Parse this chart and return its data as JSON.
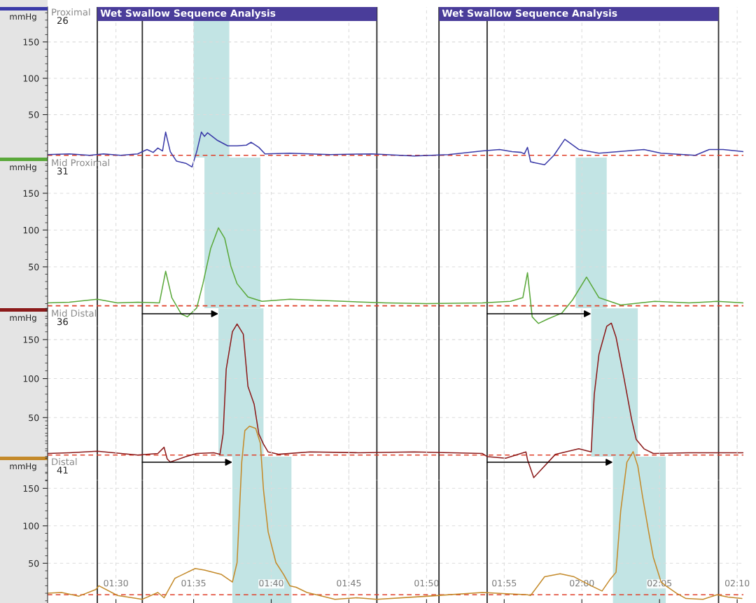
{
  "chart_data": [
    {
      "type": "line",
      "title": "Proximal",
      "subtitle": "26",
      "ylabel": "mmHg",
      "grid": true,
      "tick_labels": "y",
      "xlim": [
        85.6,
        130.4
      ],
      "ylim": [
        -25,
        198
      ],
      "yticks": [
        50,
        100,
        150
      ],
      "xticks": [
        {
          "value": 90,
          "label": null
        },
        {
          "value": 95,
          "label": null
        },
        {
          "value": 100,
          "label": null
        },
        {
          "value": 105,
          "label": null
        },
        {
          "value": 110,
          "label": null
        },
        {
          "value": 115,
          "label": null
        },
        {
          "value": 120,
          "label": null
        },
        {
          "value": 125,
          "label": null
        },
        {
          "value": 130,
          "label": null
        }
      ],
      "x": [
        85.6,
        87.0,
        88.3,
        89.2,
        90.3,
        91.4,
        92.0,
        92.4,
        92.7,
        93.0,
        93.2,
        93.5,
        93.9,
        94.5,
        94.9,
        95.2,
        95.5,
        95.7,
        95.9,
        96.5,
        97.2,
        97.8,
        98.4,
        98.7,
        99.2,
        99.6,
        101.2,
        103.8,
        106.5,
        109.2,
        111.4,
        113.6,
        114.7,
        115.5,
        116.1,
        116.3,
        116.5,
        116.7,
        117.6,
        118.2,
        118.9,
        119.8,
        121.1,
        124.0,
        125.1,
        127.3,
        128.2,
        129.1,
        130.4
      ],
      "series": [
        {
          "color": "#3a3aa8",
          "values": [
            -5,
            -4,
            -6,
            -4,
            -6,
            -4,
            2,
            -2,
            4,
            0,
            26,
            -1,
            -14,
            -17,
            -22,
            -1,
            26,
            20,
            25,
            15,
            7,
            7,
            8,
            12,
            5,
            -4,
            -3,
            -5,
            -4,
            -7,
            -5,
            0,
            2,
            -1,
            -2,
            -4,
            5,
            -15,
            -19,
            -6,
            16,
            2,
            -3,
            2,
            -3,
            -6,
            2,
            2,
            -1
          ]
        }
      ],
      "bands": [
        {
          "axis": "x",
          "from": 88.8,
          "to": 106.8,
          "label": "Wet Swallow Sequence Analysis",
          "color": "#4a3d9a"
        },
        {
          "axis": "x",
          "from": 110.8,
          "to": 128.8,
          "label": "Wet Swallow Sequence Analysis",
          "color": "#4a3d9a"
        },
        {
          "axis": "x",
          "from": 95.0,
          "to": 97.3,
          "color": "#c2e4e4"
        }
      ],
      "ref_lines": [
        {
          "axis": "x",
          "value": 88.8,
          "color": "#2b2b2b"
        },
        {
          "axis": "x",
          "value": 91.7,
          "color": "#2b2b2b"
        },
        {
          "axis": "x",
          "value": 106.8,
          "color": "#2b2b2b"
        },
        {
          "axis": "x",
          "value": 110.8,
          "color": "#2b2b2b"
        },
        {
          "axis": "x",
          "value": 113.9,
          "color": "#2b2b2b"
        },
        {
          "axis": "x",
          "value": 128.8,
          "color": "#2b2b2b"
        },
        {
          "axis": "y",
          "value": -6,
          "color": "#e0402a",
          "line_style": "dashed"
        }
      ]
    },
    {
      "type": "line",
      "title": "Mid Proximal",
      "subtitle": "31",
      "ylabel": "mmHg",
      "grid": true,
      "tick_labels": "y",
      "xlim": [
        85.6,
        130.4
      ],
      "ylim": [
        -30,
        199
      ],
      "yticks": [
        50,
        100,
        150
      ],
      "xticks": [
        {
          "value": 90,
          "label": null
        },
        {
          "value": 95,
          "label": null
        },
        {
          "value": 100,
          "label": null
        },
        {
          "value": 105,
          "label": null
        },
        {
          "value": 110,
          "label": null
        },
        {
          "value": 115,
          "label": null
        },
        {
          "value": 120,
          "label": null
        },
        {
          "value": 125,
          "label": null
        },
        {
          "value": 130,
          "label": null
        }
      ],
      "x": [
        85.6,
        87.0,
        88.8,
        90.1,
        91.4,
        92.8,
        93.2,
        93.6,
        94.2,
        94.6,
        95.2,
        95.6,
        96.1,
        96.6,
        97.0,
        97.4,
        97.8,
        98.5,
        99.4,
        101.2,
        104.7,
        107.4,
        110.0,
        113.6,
        115.4,
        116.2,
        116.5,
        116.8,
        117.2,
        117.8,
        118.7,
        119.4,
        120.3,
        121.1,
        122.5,
        124.7,
        126.9,
        128.7,
        130.4
      ],
      "series": [
        {
          "color": "#5aa83a",
          "values": [
            1,
            2,
            6,
            1,
            2,
            1,
            44,
            8,
            -14,
            -18,
            -6,
            27,
            75,
            103,
            89,
            51,
            27,
            9,
            3,
            6,
            3,
            1,
            0,
            1,
            3,
            8,
            42,
            -18,
            -27,
            -21,
            -13,
            5,
            36,
            8,
            -2,
            3,
            1,
            3,
            1
          ]
        }
      ],
      "bands": [
        {
          "axis": "x",
          "from": 95.7,
          "to": 99.3,
          "color": "#c2e4e4"
        },
        {
          "axis": "x",
          "from": 119.6,
          "to": 121.6,
          "color": "#c2e4e4"
        }
      ],
      "ref_lines": [
        {
          "axis": "x",
          "value": 88.8,
          "color": "#2b2b2b"
        },
        {
          "axis": "x",
          "value": 91.7,
          "color": "#2b2b2b"
        },
        {
          "axis": "x",
          "value": 106.8,
          "color": "#2b2b2b"
        },
        {
          "axis": "x",
          "value": 110.8,
          "color": "#2b2b2b"
        },
        {
          "axis": "x",
          "value": 113.9,
          "color": "#2b2b2b"
        },
        {
          "axis": "x",
          "value": 128.8,
          "color": "#2b2b2b"
        },
        {
          "axis": "y",
          "value": -3,
          "color": "#e0402a",
          "line_style": "dashed"
        }
      ]
    },
    {
      "type": "line",
      "title": "Mid Distal",
      "subtitle": "36",
      "ylabel": "mmHg",
      "grid": true,
      "tick_labels": "y",
      "xlim": [
        85.6,
        130.4
      ],
      "ylim": [
        -30,
        190
      ],
      "yticks": [
        50,
        100,
        150
      ],
      "xticks": [
        {
          "value": 90,
          "label": null
        },
        {
          "value": 95,
          "label": null
        },
        {
          "value": 100,
          "label": null
        },
        {
          "value": 105,
          "label": null
        },
        {
          "value": 110,
          "label": null
        },
        {
          "value": 115,
          "label": null
        },
        {
          "value": 120,
          "label": null
        },
        {
          "value": 125,
          "label": null
        },
        {
          "value": 130,
          "label": null
        }
      ],
      "x": [
        85.6,
        87.0,
        88.8,
        91.4,
        92.7,
        93.1,
        93.3,
        93.5,
        94.5,
        95.2,
        96.3,
        96.7,
        96.9,
        97.1,
        97.5,
        97.8,
        98.2,
        98.5,
        98.9,
        99.2,
        99.5,
        99.8,
        100.5,
        102.5,
        105.6,
        109.2,
        113.6,
        113.9,
        115.1,
        116.4,
        116.5,
        116.9,
        118.3,
        119.8,
        120.6,
        120.8,
        121.1,
        121.6,
        121.9,
        122.2,
        122.7,
        123.2,
        123.5,
        124.0,
        124.6,
        126.9,
        130.4
      ],
      "series": [
        {
          "color": "#8b1a1a",
          "values": [
            4,
            5,
            7,
            2,
            4,
            12,
            -3,
            -7,
            0,
            4,
            5,
            3,
            29,
            112,
            160,
            170,
            157,
            90,
            67,
            29,
            16,
            6,
            3,
            6,
            5,
            6,
            4,
            0,
            -2,
            6,
            -4,
            -27,
            3,
            10,
            6,
            80,
            131,
            167,
            171,
            153,
            102,
            48,
            22,
            10,
            4,
            5,
            5
          ]
        }
      ],
      "bands": [
        {
          "axis": "x",
          "from": 96.6,
          "to": 99.5,
          "color": "#c2e4e4"
        },
        {
          "axis": "x",
          "from": 120.6,
          "to": 123.6,
          "color": "#c2e4e4"
        }
      ],
      "ref_lines": [
        {
          "axis": "x",
          "value": 88.8,
          "color": "#2b2b2b"
        },
        {
          "axis": "x",
          "value": 91.7,
          "color": "#2b2b2b"
        },
        {
          "axis": "x",
          "value": 106.8,
          "color": "#2b2b2b"
        },
        {
          "axis": "x",
          "value": 110.8,
          "color": "#2b2b2b"
        },
        {
          "axis": "x",
          "value": 113.9,
          "color": "#2b2b2b"
        },
        {
          "axis": "x",
          "value": 128.8,
          "color": "#2b2b2b"
        },
        {
          "axis": "y",
          "value": 2,
          "color": "#e0402a",
          "line_style": "dashed"
        }
      ]
    },
    {
      "type": "line",
      "title": "Distal",
      "subtitle": "41",
      "ylabel": "mmHg",
      "grid": true,
      "xlim": [
        85.6,
        130.4
      ],
      "ylim": [
        -3,
        240
      ],
      "yticks": [
        50,
        100,
        150
      ],
      "xticks": [
        {
          "value": 90,
          "label": "01:30"
        },
        {
          "value": 95,
          "label": "01:35"
        },
        {
          "value": 100,
          "label": "01:40"
        },
        {
          "value": 105,
          "label": "01:45"
        },
        {
          "value": 110,
          "label": "01:50"
        },
        {
          "value": 115,
          "label": "01:55"
        },
        {
          "value": 120,
          "label": "02:00"
        },
        {
          "value": 125,
          "label": "02:05"
        },
        {
          "value": 130,
          "label": "02:10"
        }
      ],
      "x": [
        85.6,
        86.5,
        87.6,
        88.7,
        88.9,
        90.1,
        91.7,
        92.7,
        93.1,
        93.8,
        95.1,
        95.7,
        96.8,
        97.5,
        97.8,
        98.1,
        98.3,
        98.6,
        99.0,
        99.3,
        99.5,
        99.8,
        100.3,
        100.8,
        101.2,
        101.6,
        102.3,
        103.1,
        104.1,
        105.5,
        106.8,
        110.0,
        113.6,
        116.5,
        116.7,
        117.6,
        118.6,
        119.5,
        120.5,
        121.3,
        121.8,
        122.2,
        122.5,
        122.9,
        123.3,
        123.6,
        123.9,
        124.3,
        124.6,
        125.1,
        125.4,
        126.1,
        126.7,
        127.8,
        128.7,
        129.4,
        130.3
      ],
      "series": [
        {
          "color": "#c48a2a",
          "values": [
            10,
            11,
            6,
            15,
            20,
            7,
            2,
            11,
            4,
            30,
            43,
            41,
            35,
            25,
            51,
            185,
            227,
            233,
            230,
            210,
            148,
            92,
            51,
            35,
            20,
            18,
            11,
            7,
            2,
            4,
            2,
            6,
            11,
            8,
            7,
            32,
            36,
            32,
            21,
            13,
            28,
            38,
            120,
            185,
            199,
            180,
            140,
            92,
            58,
            25,
            20,
            10,
            3,
            2,
            8,
            5,
            3
          ]
        }
      ],
      "bands": [
        {
          "axis": "x",
          "from": 97.5,
          "to": 101.3,
          "color": "#c2e4e4"
        },
        {
          "axis": "x",
          "from": 122.0,
          "to": 125.4,
          "color": "#c2e4e4"
        }
      ],
      "ref_lines": [
        {
          "axis": "x",
          "value": 88.8,
          "color": "#2b2b2b"
        },
        {
          "axis": "x",
          "value": 91.7,
          "color": "#2b2b2b"
        },
        {
          "axis": "x",
          "value": 106.8,
          "color": "#2b2b2b"
        },
        {
          "axis": "x",
          "value": 110.8,
          "color": "#2b2b2b"
        },
        {
          "axis": "x",
          "value": 113.9,
          "color": "#2b2b2b"
        },
        {
          "axis": "x",
          "value": 128.8,
          "color": "#2b2b2b"
        },
        {
          "axis": "y",
          "value": 8,
          "color": "#e0402a",
          "line_style": "dashed"
        }
      ]
    }
  ]
}
